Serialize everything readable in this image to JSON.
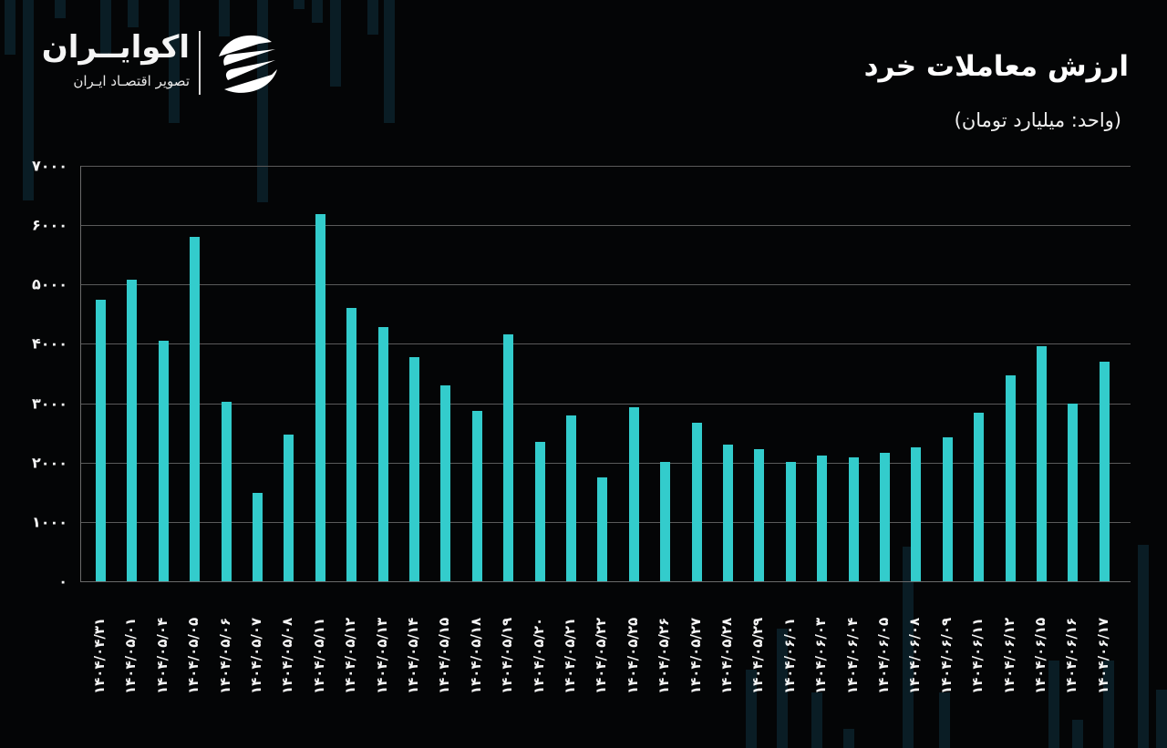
{
  "header": {
    "title": "ارزش معاملات خرد",
    "subtitle": "(واحد: میلیارد تومان)"
  },
  "logo": {
    "name": "اکوایــران",
    "tagline": "تصویر اقتصـاد ایـران",
    "emblem": "ecoiran-swoosh-logo-icon"
  },
  "colors": {
    "background": "#040506",
    "bar": "#33cccc",
    "grid": "#5a5a5a",
    "text": "#ffffff"
  },
  "y_ticks": [
    "۰",
    "۱۰۰۰",
    "۲۰۰۰",
    "۳۰۰۰",
    "۴۰۰۰",
    "۵۰۰۰",
    "۶۰۰۰",
    "۷۰۰۰"
  ],
  "chart_data": {
    "type": "bar",
    "title": "ارزش معاملات خرد",
    "subtitle": "(واحد: میلیارد تومان)",
    "xlabel": "",
    "ylabel": "میلیارد تومان",
    "ylim": [
      0,
      7000
    ],
    "yticks": [
      0,
      1000,
      2000,
      3000,
      4000,
      5000,
      6000,
      7000
    ],
    "grid": true,
    "legend": null,
    "categories": [
      "۱۴۰۴/۰۴/۳۱",
      "۱۴۰۴/۰۵/۰۱",
      "۱۴۰۴/۰۵/۰۴",
      "۱۴۰۴/۰۵/۰۵",
      "۱۴۰۴/۰۵/۰۶",
      "۱۴۰۴/۰۵/۰۷",
      "۱۴۰۴/۰۵/۰۸",
      "۱۴۰۴/۰۵/۱۱",
      "۱۴۰۴/۰۵/۱۲",
      "۱۴۰۴/۰۵/۱۳",
      "۱۴۰۴/۰۵/۱۴",
      "۱۴۰۴/۰۵/۱۵",
      "۱۴۰۴/۰۵/۱۸",
      "۱۴۰۴/۰۵/۱۹",
      "۱۴۰۴/۰۵/۲۰",
      "۱۴۰۴/۰۵/۲۱",
      "۱۴۰۴/۰۵/۲۲",
      "۱۴۰۴/۰۵/۲۵",
      "۱۴۰۴/۰۵/۲۶",
      "۱۴۰۴/۰۵/۲۷",
      "۱۴۰۴/۰۵/۲۸",
      "۱۴۰۴/۰۵/۲۹",
      "۱۴۰۴/۰۶/۰۱",
      "۱۴۰۴/۰۶/۰۳",
      "۱۴۰۴/۰۶/۰۴",
      "۱۴۰۴/۰۶/۰۵",
      "۱۴۰۴/۰۶/۰۸",
      "۱۴۰۴/۰۶/۰۹",
      "۱۴۰۴/۰۶/۱۱",
      "۱۴۰۴/۰۶/۱۲",
      "۱۴۰۴/۰۶/۱۵",
      "۱۴۰۴/۰۶/۱۶",
      "۱۴۰۴/۰۶/۱۷"
    ],
    "values": [
      4750,
      5080,
      4050,
      5800,
      3020,
      1490,
      2470,
      6180,
      4600,
      4290,
      3770,
      3300,
      2870,
      4160,
      2350,
      2790,
      1750,
      2930,
      2010,
      2670,
      2300,
      2220,
      2010,
      2120,
      2090,
      2160,
      2250,
      2420,
      2840,
      3470,
      3960,
      2990,
      3700
    ]
  }
}
